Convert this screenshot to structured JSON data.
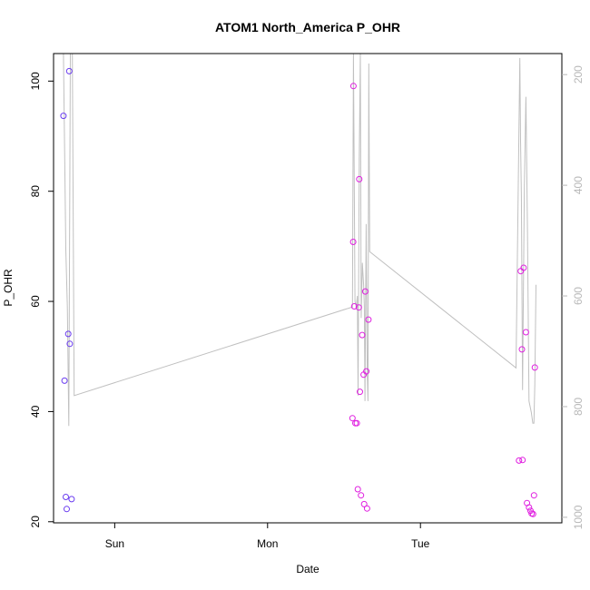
{
  "chart_data": {
    "type": "scatter",
    "title": "ATOM1 North_America P_OHR",
    "xlabel": "Date",
    "ylabel": "P_OHR",
    "x_ticks": [
      {
        "label": "Sun",
        "day": 1.0
      },
      {
        "label": "Mon",
        "day": 2.0
      },
      {
        "label": "Tue",
        "day": 3.0
      }
    ],
    "xlim": [
      0.6,
      3.925
    ],
    "ylim": [
      19.8,
      105.0
    ],
    "y_ticks": [
      20,
      40,
      60,
      80,
      100
    ],
    "y2lim": [
      1010,
      162
    ],
    "y2_ticks": [
      200,
      400,
      600,
      800,
      1000
    ],
    "colors": {
      "line": "#c0c0c0",
      "early_points": "#6a3cf0",
      "late_points": "#e020e0",
      "frame": "#000000"
    },
    "points": [
      {
        "x": 0.665,
        "y": 93.7,
        "group": "early"
      },
      {
        "x": 0.672,
        "y": 45.6,
        "group": "early"
      },
      {
        "x": 0.68,
        "y": 24.5,
        "group": "early"
      },
      {
        "x": 0.686,
        "y": 22.3,
        "group": "early"
      },
      {
        "x": 0.696,
        "y": 54.1,
        "group": "early"
      },
      {
        "x": 0.703,
        "y": 101.8,
        "group": "early"
      },
      {
        "x": 0.706,
        "y": 52.3,
        "group": "early"
      },
      {
        "x": 0.718,
        "y": 24.1,
        "group": "early"
      },
      {
        "x": 2.555,
        "y": 38.8,
        "group": "late"
      },
      {
        "x": 2.56,
        "y": 70.8,
        "group": "late"
      },
      {
        "x": 2.562,
        "y": 99.1,
        "group": "late"
      },
      {
        "x": 2.567,
        "y": 59.1,
        "group": "late"
      },
      {
        "x": 2.574,
        "y": 37.9,
        "group": "late"
      },
      {
        "x": 2.584,
        "y": 37.9,
        "group": "late"
      },
      {
        "x": 2.59,
        "y": 25.9,
        "group": "late"
      },
      {
        "x": 2.597,
        "y": 58.9,
        "group": "late"
      },
      {
        "x": 2.6,
        "y": 82.2,
        "group": "late"
      },
      {
        "x": 2.604,
        "y": 43.6,
        "group": "late"
      },
      {
        "x": 2.611,
        "y": 24.8,
        "group": "late"
      },
      {
        "x": 2.619,
        "y": 53.9,
        "group": "late"
      },
      {
        "x": 2.628,
        "y": 46.7,
        "group": "late"
      },
      {
        "x": 2.632,
        "y": 23.2,
        "group": "late"
      },
      {
        "x": 2.639,
        "y": 61.8,
        "group": "late"
      },
      {
        "x": 2.646,
        "y": 47.3,
        "group": "late"
      },
      {
        "x": 2.651,
        "y": 22.4,
        "group": "late"
      },
      {
        "x": 2.66,
        "y": 56.7,
        "group": "late"
      },
      {
        "x": 3.645,
        "y": 31.1,
        "group": "late"
      },
      {
        "x": 3.656,
        "y": 65.5,
        "group": "late"
      },
      {
        "x": 3.664,
        "y": 51.3,
        "group": "late"
      },
      {
        "x": 3.668,
        "y": 31.2,
        "group": "late"
      },
      {
        "x": 3.675,
        "y": 66.1,
        "group": "late"
      },
      {
        "x": 3.69,
        "y": 54.4,
        "group": "late"
      },
      {
        "x": 3.697,
        "y": 23.4,
        "group": "late"
      },
      {
        "x": 3.71,
        "y": 22.6,
        "group": "late"
      },
      {
        "x": 3.72,
        "y": 22.0,
        "group": "late"
      },
      {
        "x": 3.727,
        "y": 21.5,
        "group": "late"
      },
      {
        "x": 3.737,
        "y": 21.4,
        "group": "late"
      },
      {
        "x": 3.743,
        "y": 24.8,
        "group": "late"
      },
      {
        "x": 3.748,
        "y": 48.0,
        "group": "late"
      }
    ],
    "line_y2": [
      [
        0.665,
        162
      ],
      [
        0.68,
        515
      ],
      [
        0.69,
        620
      ],
      [
        0.7,
        835
      ],
      [
        0.71,
        162
      ],
      [
        0.723,
        162
      ],
      [
        0.735,
        780
      ],
      [
        2.555,
        620
      ],
      [
        2.562,
        162
      ],
      [
        2.568,
        450
      ],
      [
        2.572,
        610
      ],
      [
        2.58,
        620
      ],
      [
        2.587,
        600
      ],
      [
        2.592,
        780
      ],
      [
        2.6,
        350
      ],
      [
        2.607,
        162
      ],
      [
        2.612,
        640
      ],
      [
        2.62,
        540
      ],
      [
        2.628,
        580
      ],
      [
        2.633,
        620
      ],
      [
        2.637,
        790
      ],
      [
        2.645,
        470
      ],
      [
        2.652,
        740
      ],
      [
        2.657,
        790
      ],
      [
        2.662,
        180
      ],
      [
        2.668,
        520
      ],
      [
        3.625,
        730
      ],
      [
        3.65,
        170
      ],
      [
        3.655,
        320
      ],
      [
        3.66,
        420
      ],
      [
        3.668,
        770
      ],
      [
        3.674,
        580
      ],
      [
        3.68,
        400
      ],
      [
        3.69,
        240
      ],
      [
        3.7,
        480
      ],
      [
        3.71,
        790
      ],
      [
        3.725,
        810
      ],
      [
        3.735,
        830
      ],
      [
        3.742,
        830
      ],
      [
        3.748,
        760
      ],
      [
        3.756,
        580
      ]
    ]
  }
}
